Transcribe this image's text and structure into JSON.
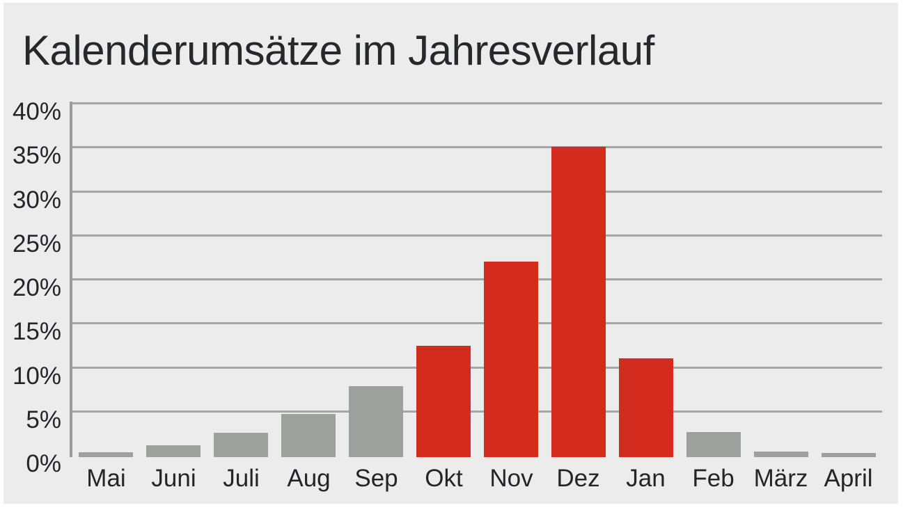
{
  "title": "Kalenderumsätze im Jahresverlauf",
  "colors": {
    "page_background": "#ffffff",
    "panel_background": "#ececec",
    "bar_gray": "#9da19e",
    "bar_highlight_red": "#d32b1e",
    "gridline": "#a4a6a3",
    "axis": "#9a9c99",
    "text": "#232528"
  },
  "chart_data": {
    "type": "bar",
    "title": "Kalenderumsätze im Jahresverlauf",
    "categories": [
      "Mai",
      "Juni",
      "Juli",
      "Aug",
      "Sep",
      "Okt",
      "Nov",
      "Dez",
      "Jan",
      "Feb",
      "März",
      "April"
    ],
    "values": [
      0.3,
      1.1,
      2.5,
      4.7,
      7.8,
      12.4,
      22.0,
      35.0,
      11.0,
      2.6,
      0.4,
      0.2
    ],
    "highlighted": [
      false,
      false,
      false,
      false,
      false,
      true,
      true,
      true,
      true,
      false,
      false,
      false
    ],
    "unit": "%",
    "xlabel": "",
    "ylabel": "",
    "ylim": [
      0,
      40
    ],
    "yticks": [
      0,
      5,
      10,
      15,
      20,
      25,
      30,
      35,
      40
    ],
    "ytick_labels": [
      "0%",
      "5%",
      "10%",
      "15%",
      "20%",
      "25%",
      "30%",
      "35%",
      "40%"
    ],
    "grid": true,
    "legend": false,
    "legend_position": "none"
  }
}
